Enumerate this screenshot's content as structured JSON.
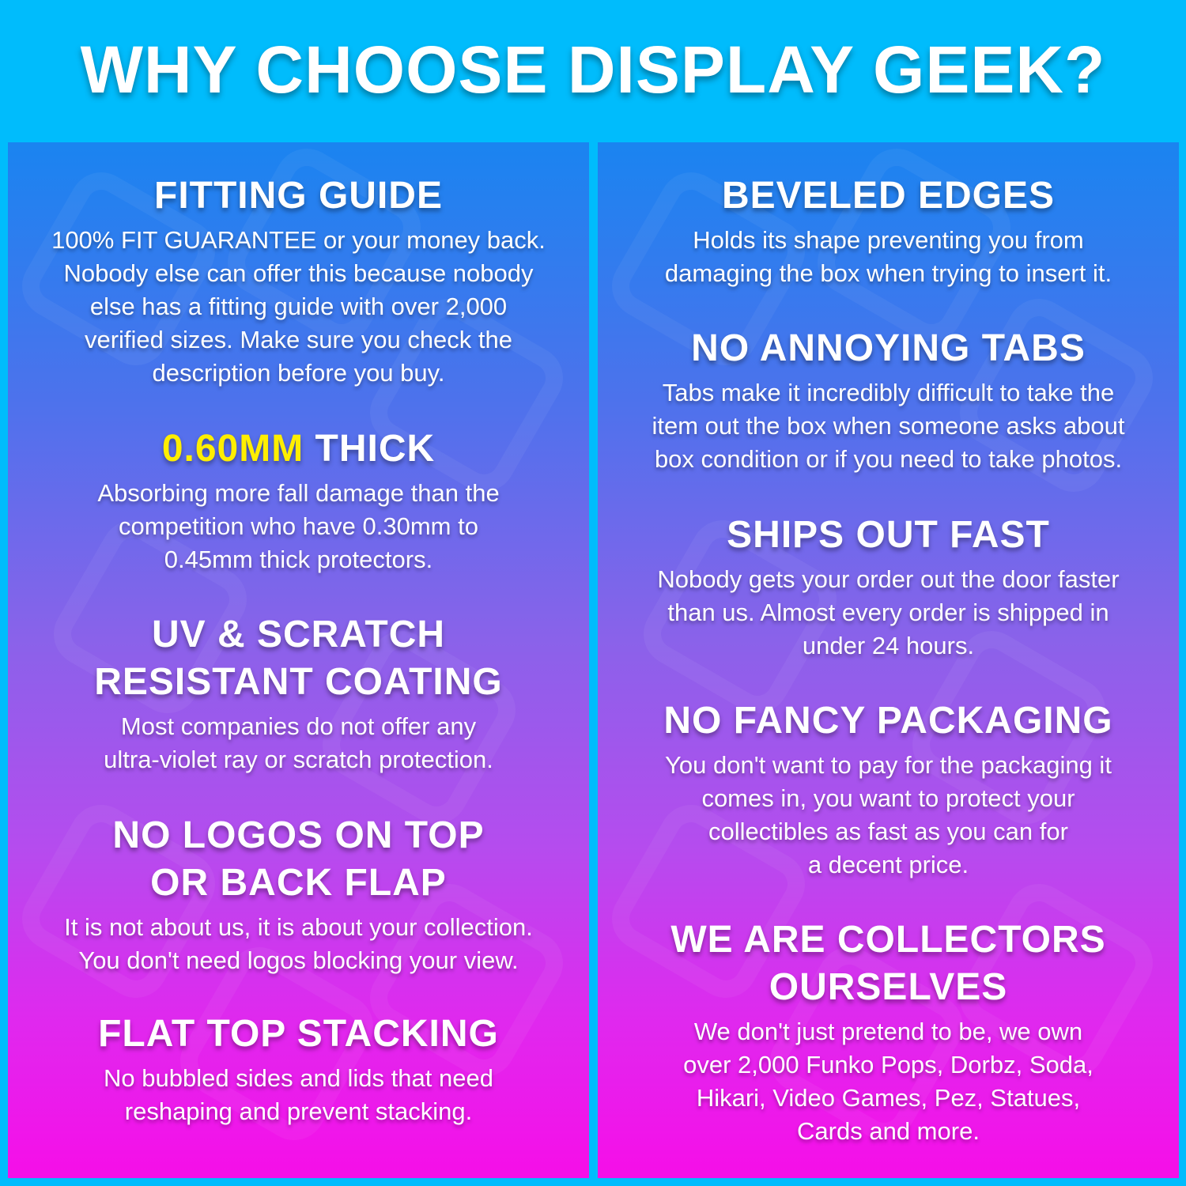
{
  "title": "WHY CHOOSE DISPLAY GEEK?",
  "colors": {
    "background": "#00bcfc",
    "panel_top": "#1a84f0",
    "panel_bottom": "#f60ee8",
    "highlight": "#ffee00"
  },
  "left": [
    {
      "heading": [
        "FITTING GUIDE"
      ],
      "body": [
        "100% FIT GUARANTEE or your money back.",
        "Nobody else can offer this because nobody",
        "else has a fitting guide with over 2,000",
        "verified sizes. Make sure you check the",
        "description before you buy."
      ]
    },
    {
      "heading_highlight": "0.60MM",
      "heading_rest": " THICK",
      "body": [
        "Absorbing more fall damage than the",
        "competition who have 0.30mm to",
        "0.45mm thick protectors."
      ]
    },
    {
      "heading": [
        "UV & SCRATCH",
        "RESISTANT COATING"
      ],
      "body": [
        "Most companies do not offer any",
        "ultra-violet ray or scratch protection."
      ]
    },
    {
      "heading": [
        "NO LOGOS ON TOP",
        "OR BACK FLAP"
      ],
      "body": [
        "It is not about us, it is about your collection.",
        "You don't need logos blocking your view."
      ]
    },
    {
      "heading": [
        "FLAT TOP STACKING"
      ],
      "body": [
        "No bubbled sides and lids that need",
        "reshaping and prevent stacking."
      ]
    }
  ],
  "right": [
    {
      "heading": [
        "BEVELED EDGES"
      ],
      "body": [
        "Holds its shape preventing you from",
        "damaging the box when trying to insert it."
      ]
    },
    {
      "heading": [
        "NO ANNOYING TABS"
      ],
      "body": [
        "Tabs make it incredibly difficult to take the",
        "item out the box when someone asks about",
        "box condition or if you need to take photos."
      ]
    },
    {
      "heading": [
        "SHIPS OUT FAST"
      ],
      "body": [
        "Nobody gets your order out the door faster",
        "than us. Almost every order is shipped in",
        "under 24 hours."
      ]
    },
    {
      "heading": [
        "NO FANCY PACKAGING"
      ],
      "body": [
        "You don't want to pay for the packaging it",
        "comes in, you want to protect your",
        "collectibles as fast as you can for",
        "a decent price."
      ]
    },
    {
      "heading": [
        "WE ARE COLLECTORS",
        "OURSELVES"
      ],
      "body": [
        "We don't just pretend to be, we own",
        "over 2,000 Funko Pops, Dorbz, Soda,",
        "Hikari, Video Games, Pez, Statues,",
        "Cards and more."
      ]
    }
  ]
}
